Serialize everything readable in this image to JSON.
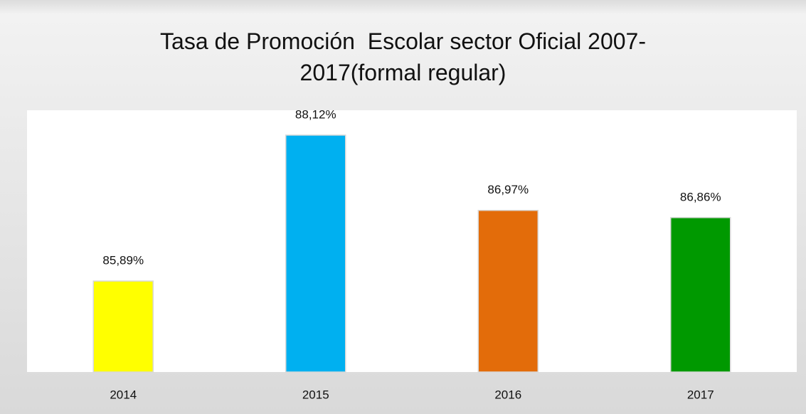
{
  "chart_data": {
    "type": "bar",
    "title": "Tasa de Promoción  Escolar sector Oficial 2007-2017(formal regular)",
    "categories": [
      "2014",
      "2015",
      "2016",
      "2017"
    ],
    "values": [
      85.89,
      88.12,
      86.97,
      86.86
    ],
    "value_labels": [
      "85,89%",
      "88,12%",
      "86,97%",
      "86,86%"
    ],
    "colors": [
      "#ffff00",
      "#00b0f0",
      "#e36c0a",
      "#009900"
    ],
    "ylim": [
      84.5,
      88.5
    ]
  }
}
